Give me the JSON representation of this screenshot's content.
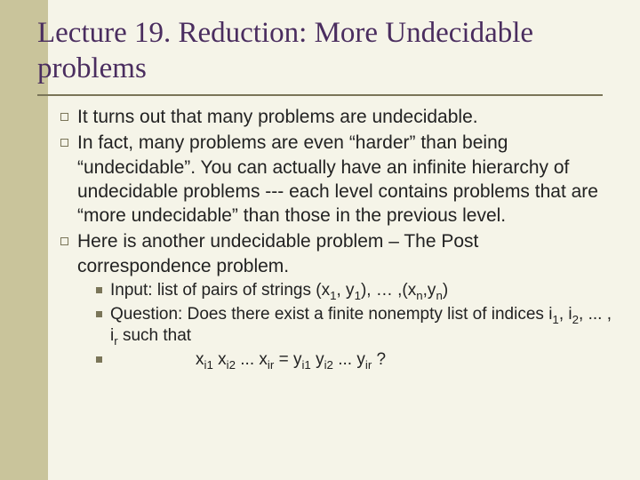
{
  "colors": {
    "background": "#f5f4e8",
    "sidebar": "#c9c49b",
    "title": "#4a2d5f",
    "rule": "#7a7558",
    "text": "#222222"
  },
  "title": "Lecture 19. Reduction: More Undecidable problems",
  "bullets": {
    "b1": "It turns out that many problems are undecidable.",
    "b2": "In fact, many problems are even “harder” than being “undecidable”. You can actually have an infinite hierarchy of undecidable problems --- each level contains problems that are “more undecidable” than those in the previous level.",
    "b3": "Here is another undecidable problem – The Post correspondence problem.",
    "sub1_pre": "Input: list of pairs of strings (x",
    "sub1_s1": "1",
    "sub1_m1": ", y",
    "sub1_s2": "1",
    "sub1_m2": "), … ,(x",
    "sub1_s3": "n",
    "sub1_m3": ",y",
    "sub1_s4": "n",
    "sub1_end": ")",
    "sub2_pre": "Question: Does there exist a finite nonempty list of indices i",
    "sub2_s1": "1",
    "sub2_m1": ", i",
    "sub2_s2": "2",
    "sub2_m2": ", ... , i",
    "sub2_s3": "r",
    "sub2_end": " such that",
    "f_x": "x",
    "f_i1": "i1",
    "f_sp": " x",
    "f_i2": "i2",
    "f_dots": " ... x",
    "f_ir": "ir",
    "f_eq": " = y",
    "f_yi1": "i1",
    "f_ysp": " y",
    "f_yi2": "i2",
    "f_ydots": " ... y",
    "f_yir": "ir",
    "f_q": " ?"
  }
}
